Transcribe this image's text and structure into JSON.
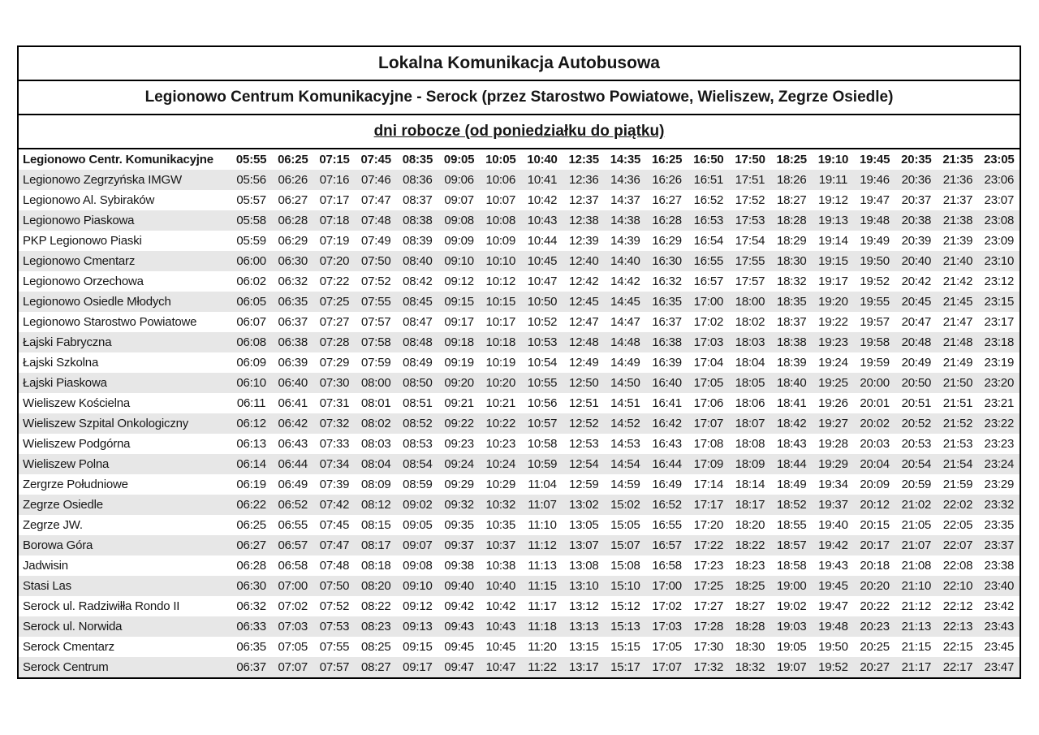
{
  "header": {
    "title": "Lokalna Komunikacja Autobusowa",
    "route": "Legionowo Centrum Komunikacyjne - Serock (przez Starostwo Powiatowe, Wieliszew, Zegrze Osiedle)",
    "service_days": "dni robocze (od poniedziałku do piątku)"
  },
  "colors": {
    "border": "#000000",
    "stripe": "#e7e7e7",
    "text": "#161616",
    "background": "#ffffff"
  },
  "timetable": {
    "stop_column_header": "Legionowo Centr. Komunikacyjne",
    "header_departures": [
      "05:55",
      "06:25",
      "07:15",
      "07:45",
      "08:35",
      "09:05",
      "10:05",
      "10:40",
      "12:35",
      "14:35",
      "16:25",
      "16:50",
      "17:50",
      "18:25",
      "19:10",
      "19:45",
      "20:35",
      "21:35",
      "23:05"
    ],
    "rows": [
      {
        "stop": "Legionowo Zegrzyńska IMGW",
        "times": [
          "05:56",
          "06:26",
          "07:16",
          "07:46",
          "08:36",
          "09:06",
          "10:06",
          "10:41",
          "12:36",
          "14:36",
          "16:26",
          "16:51",
          "17:51",
          "18:26",
          "19:11",
          "19:46",
          "20:36",
          "21:36",
          "23:06"
        ]
      },
      {
        "stop": "Legionowo Al. Sybiraków",
        "times": [
          "05:57",
          "06:27",
          "07:17",
          "07:47",
          "08:37",
          "09:07",
          "10:07",
          "10:42",
          "12:37",
          "14:37",
          "16:27",
          "16:52",
          "17:52",
          "18:27",
          "19:12",
          "19:47",
          "20:37",
          "21:37",
          "23:07"
        ]
      },
      {
        "stop": "Legionowo Piaskowa",
        "times": [
          "05:58",
          "06:28",
          "07:18",
          "07:48",
          "08:38",
          "09:08",
          "10:08",
          "10:43",
          "12:38",
          "14:38",
          "16:28",
          "16:53",
          "17:53",
          "18:28",
          "19:13",
          "19:48",
          "20:38",
          "21:38",
          "23:08"
        ]
      },
      {
        "stop": "PKP Legionowo Piaski",
        "times": [
          "05:59",
          "06:29",
          "07:19",
          "07:49",
          "08:39",
          "09:09",
          "10:09",
          "10:44",
          "12:39",
          "14:39",
          "16:29",
          "16:54",
          "17:54",
          "18:29",
          "19:14",
          "19:49",
          "20:39",
          "21:39",
          "23:09"
        ]
      },
      {
        "stop": "Legionowo Cmentarz",
        "times": [
          "06:00",
          "06:30",
          "07:20",
          "07:50",
          "08:40",
          "09:10",
          "10:10",
          "10:45",
          "12:40",
          "14:40",
          "16:30",
          "16:55",
          "17:55",
          "18:30",
          "19:15",
          "19:50",
          "20:40",
          "21:40",
          "23:10"
        ]
      },
      {
        "stop": "Legionowo Orzechowa",
        "times": [
          "06:02",
          "06:32",
          "07:22",
          "07:52",
          "08:42",
          "09:12",
          "10:12",
          "10:47",
          "12:42",
          "14:42",
          "16:32",
          "16:57",
          "17:57",
          "18:32",
          "19:17",
          "19:52",
          "20:42",
          "21:42",
          "23:12"
        ]
      },
      {
        "stop": "Legionowo Osiedle Młodych",
        "times": [
          "06:05",
          "06:35",
          "07:25",
          "07:55",
          "08:45",
          "09:15",
          "10:15",
          "10:50",
          "12:45",
          "14:45",
          "16:35",
          "17:00",
          "18:00",
          "18:35",
          "19:20",
          "19:55",
          "20:45",
          "21:45",
          "23:15"
        ]
      },
      {
        "stop": "Legionowo Starostwo Powiatowe",
        "times": [
          "06:07",
          "06:37",
          "07:27",
          "07:57",
          "08:47",
          "09:17",
          "10:17",
          "10:52",
          "12:47",
          "14:47",
          "16:37",
          "17:02",
          "18:02",
          "18:37",
          "19:22",
          "19:57",
          "20:47",
          "21:47",
          "23:17"
        ]
      },
      {
        "stop": "Łajski Fabryczna",
        "times": [
          "06:08",
          "06:38",
          "07:28",
          "07:58",
          "08:48",
          "09:18",
          "10:18",
          "10:53",
          "12:48",
          "14:48",
          "16:38",
          "17:03",
          "18:03",
          "18:38",
          "19:23",
          "19:58",
          "20:48",
          "21:48",
          "23:18"
        ]
      },
      {
        "stop": "Łajski Szkolna",
        "times": [
          "06:09",
          "06:39",
          "07:29",
          "07:59",
          "08:49",
          "09:19",
          "10:19",
          "10:54",
          "12:49",
          "14:49",
          "16:39",
          "17:04",
          "18:04",
          "18:39",
          "19:24",
          "19:59",
          "20:49",
          "21:49",
          "23:19"
        ]
      },
      {
        "stop": "Łajski Piaskowa",
        "times": [
          "06:10",
          "06:40",
          "07:30",
          "08:00",
          "08:50",
          "09:20",
          "10:20",
          "10:55",
          "12:50",
          "14:50",
          "16:40",
          "17:05",
          "18:05",
          "18:40",
          "19:25",
          "20:00",
          "20:50",
          "21:50",
          "23:20"
        ]
      },
      {
        "stop": "Wieliszew Kościelna",
        "times": [
          "06:11",
          "06:41",
          "07:31",
          "08:01",
          "08:51",
          "09:21",
          "10:21",
          "10:56",
          "12:51",
          "14:51",
          "16:41",
          "17:06",
          "18:06",
          "18:41",
          "19:26",
          "20:01",
          "20:51",
          "21:51",
          "23:21"
        ]
      },
      {
        "stop": "Wieliszew Szpital Onkologiczny",
        "times": [
          "06:12",
          "06:42",
          "07:32",
          "08:02",
          "08:52",
          "09:22",
          "10:22",
          "10:57",
          "12:52",
          "14:52",
          "16:42",
          "17:07",
          "18:07",
          "18:42",
          "19:27",
          "20:02",
          "20:52",
          "21:52",
          "23:22"
        ]
      },
      {
        "stop": "Wieliszew Podgórna",
        "times": [
          "06:13",
          "06:43",
          "07:33",
          "08:03",
          "08:53",
          "09:23",
          "10:23",
          "10:58",
          "12:53",
          "14:53",
          "16:43",
          "17:08",
          "18:08",
          "18:43",
          "19:28",
          "20:03",
          "20:53",
          "21:53",
          "23:23"
        ]
      },
      {
        "stop": "Wieliszew Polna",
        "times": [
          "06:14",
          "06:44",
          "07:34",
          "08:04",
          "08:54",
          "09:24",
          "10:24",
          "10:59",
          "12:54",
          "14:54",
          "16:44",
          "17:09",
          "18:09",
          "18:44",
          "19:29",
          "20:04",
          "20:54",
          "21:54",
          "23:24"
        ]
      },
      {
        "stop": "Zergrze Południowe",
        "times": [
          "06:19",
          "06:49",
          "07:39",
          "08:09",
          "08:59",
          "09:29",
          "10:29",
          "11:04",
          "12:59",
          "14:59",
          "16:49",
          "17:14",
          "18:14",
          "18:49",
          "19:34",
          "20:09",
          "20:59",
          "21:59",
          "23:29"
        ]
      },
      {
        "stop": "Zegrze Osiedle",
        "times": [
          "06:22",
          "06:52",
          "07:42",
          "08:12",
          "09:02",
          "09:32",
          "10:32",
          "11:07",
          "13:02",
          "15:02",
          "16:52",
          "17:17",
          "18:17",
          "18:52",
          "19:37",
          "20:12",
          "21:02",
          "22:02",
          "23:32"
        ]
      },
      {
        "stop": "Zegrze JW.",
        "times": [
          "06:25",
          "06:55",
          "07:45",
          "08:15",
          "09:05",
          "09:35",
          "10:35",
          "11:10",
          "13:05",
          "15:05",
          "16:55",
          "17:20",
          "18:20",
          "18:55",
          "19:40",
          "20:15",
          "21:05",
          "22:05",
          "23:35"
        ]
      },
      {
        "stop": "Borowa Góra",
        "times": [
          "06:27",
          "06:57",
          "07:47",
          "08:17",
          "09:07",
          "09:37",
          "10:37",
          "11:12",
          "13:07",
          "15:07",
          "16:57",
          "17:22",
          "18:22",
          "18:57",
          "19:42",
          "20:17",
          "21:07",
          "22:07",
          "23:37"
        ]
      },
      {
        "stop": "Jadwisin",
        "times": [
          "06:28",
          "06:58",
          "07:48",
          "08:18",
          "09:08",
          "09:38",
          "10:38",
          "11:13",
          "13:08",
          "15:08",
          "16:58",
          "17:23",
          "18:23",
          "18:58",
          "19:43",
          "20:18",
          "21:08",
          "22:08",
          "23:38"
        ]
      },
      {
        "stop": "Stasi Las",
        "times": [
          "06:30",
          "07:00",
          "07:50",
          "08:20",
          "09:10",
          "09:40",
          "10:40",
          "11:15",
          "13:10",
          "15:10",
          "17:00",
          "17:25",
          "18:25",
          "19:00",
          "19:45",
          "20:20",
          "21:10",
          "22:10",
          "23:40"
        ]
      },
      {
        "stop": "Serock ul. Radziwiłła Rondo II",
        "times": [
          "06:32",
          "07:02",
          "07:52",
          "08:22",
          "09:12",
          "09:42",
          "10:42",
          "11:17",
          "13:12",
          "15:12",
          "17:02",
          "17:27",
          "18:27",
          "19:02",
          "19:47",
          "20:22",
          "21:12",
          "22:12",
          "23:42"
        ]
      },
      {
        "stop": "Serock ul. Norwida",
        "times": [
          "06:33",
          "07:03",
          "07:53",
          "08:23",
          "09:13",
          "09:43",
          "10:43",
          "11:18",
          "13:13",
          "15:13",
          "17:03",
          "17:28",
          "18:28",
          "19:03",
          "19:48",
          "20:23",
          "21:13",
          "22:13",
          "23:43"
        ]
      },
      {
        "stop": "Serock Cmentarz",
        "times": [
          "06:35",
          "07:05",
          "07:55",
          "08:25",
          "09:15",
          "09:45",
          "10:45",
          "11:20",
          "13:15",
          "15:15",
          "17:05",
          "17:30",
          "18:30",
          "19:05",
          "19:50",
          "20:25",
          "21:15",
          "22:15",
          "23:45"
        ]
      },
      {
        "stop": "Serock Centrum",
        "times": [
          "06:37",
          "07:07",
          "07:57",
          "08:27",
          "09:17",
          "09:47",
          "10:47",
          "11:22",
          "13:17",
          "15:17",
          "17:07",
          "17:32",
          "18:32",
          "19:07",
          "19:52",
          "20:27",
          "21:17",
          "22:17",
          "23:47"
        ]
      }
    ]
  }
}
